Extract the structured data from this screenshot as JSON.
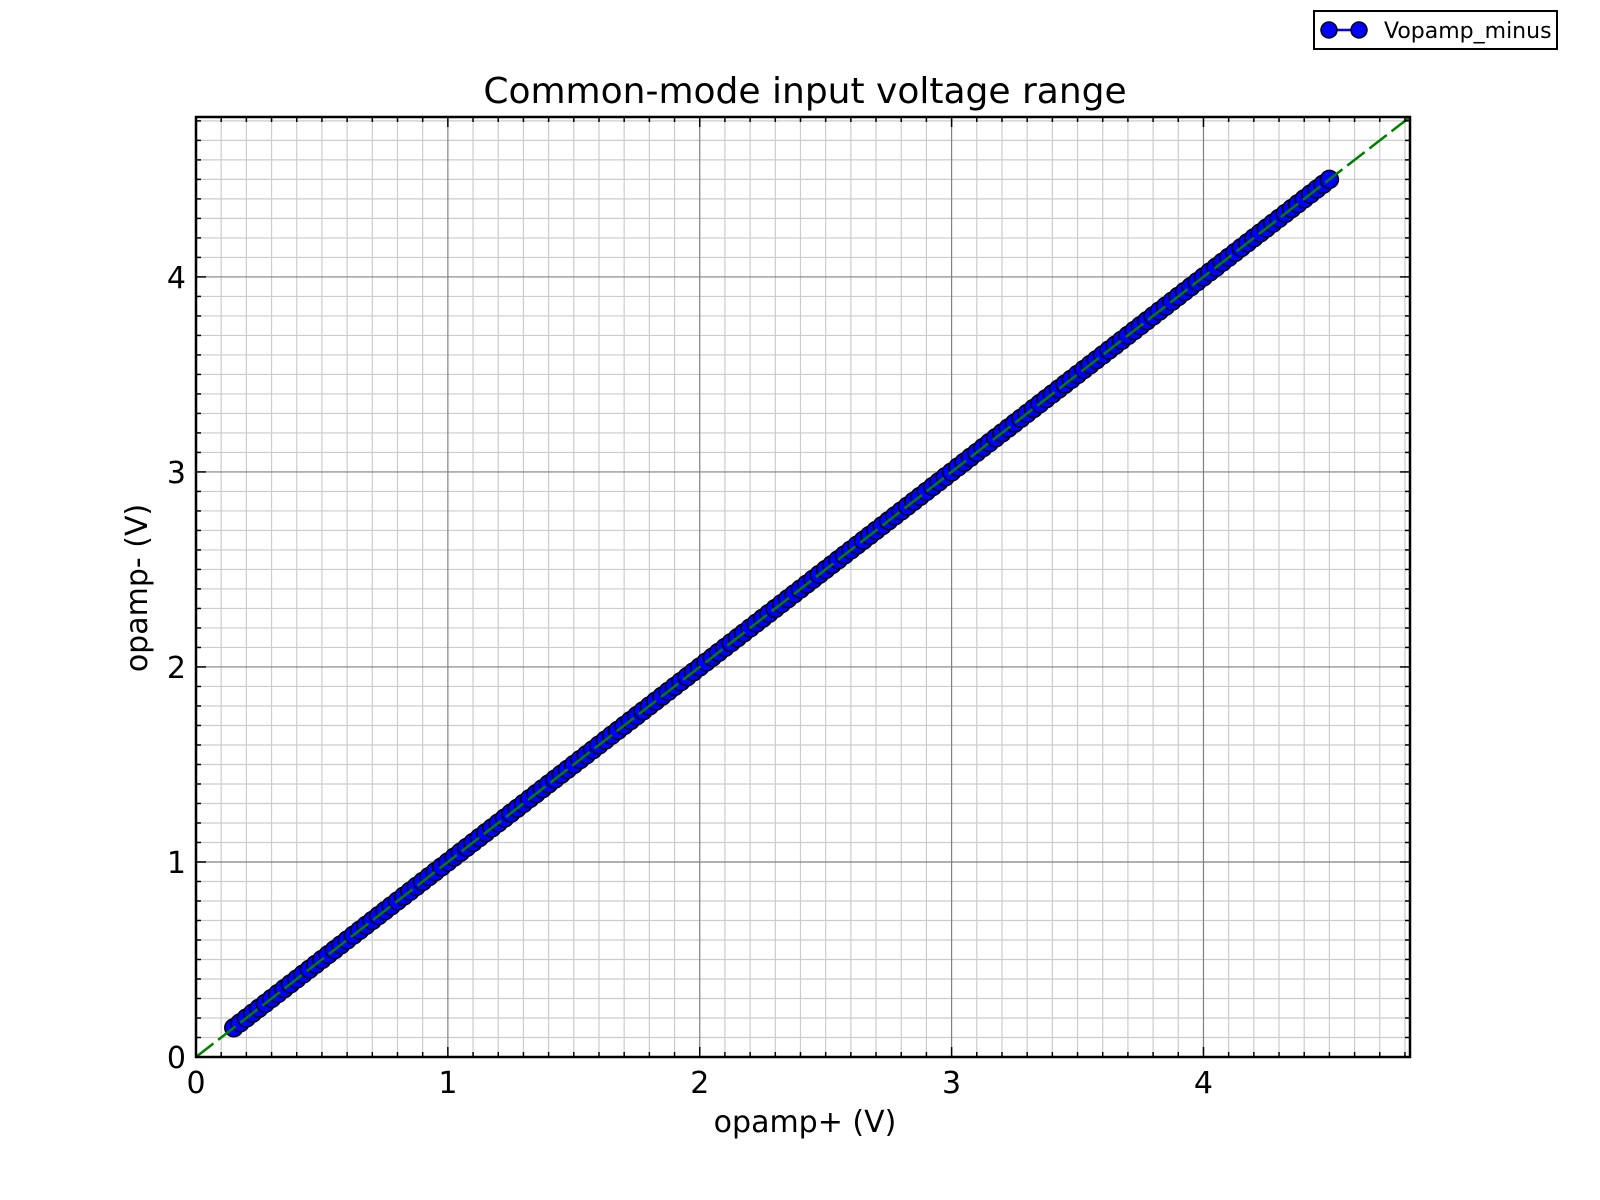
{
  "chart_data": {
    "type": "line",
    "title": "Common-mode input voltage range",
    "xlabel": "opamp+ (V)",
    "ylabel": "opamp- (V)",
    "xlim": [
      0,
      4.82
    ],
    "ylim": [
      0,
      4.82
    ],
    "xticks": [
      "0",
      "1",
      "2",
      "3",
      "4"
    ],
    "yticks": [
      "0",
      "1",
      "2",
      "3",
      "4"
    ],
    "grid": true,
    "minor_grid": true,
    "legend_position": "top-right, outside plot",
    "series": [
      {
        "name": "Vopamp_minus",
        "x_start": 0.15,
        "x_end": 4.5,
        "x_step": 0.025,
        "relation": "y = x",
        "color": "#0000ff",
        "edge_color": "#000000",
        "marker": "circle"
      }
    ],
    "reference_line": {
      "relation": "y = x",
      "color": "#008000",
      "style": "dashed"
    }
  },
  "colors": {
    "major_grid": "#808080",
    "minor_grid": "#cccccc",
    "axes": "#000000",
    "background": "#ffffff"
  }
}
